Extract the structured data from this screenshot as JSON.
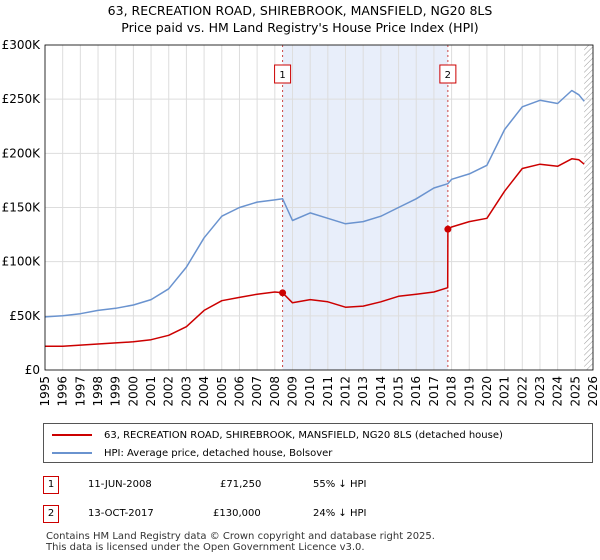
{
  "title_line1": "63, RECREATION ROAD, SHIREBROOK, MANSFIELD, NG20 8LS",
  "title_line2": "Price paid vs. HM Land Registry's House Price Index (HPI)",
  "colors": {
    "price": "#cc0000",
    "hpi": "#6a93cf",
    "shade": "#e8eefa",
    "marker_line": "#cc4444"
  },
  "chart_data": {
    "type": "line",
    "title": "63, RECREATION ROAD, SHIREBROOK, MANSFIELD, NG20 8LS",
    "subtitle": "Price paid vs. HM Land Registry's House Price Index (HPI)",
    "xlim": [
      1995,
      2026
    ],
    "ylim": [
      0,
      300000
    ],
    "y_ticks": [
      0,
      50000,
      100000,
      150000,
      200000,
      250000,
      300000
    ],
    "y_tick_labels": [
      "£0",
      "£50K",
      "£100K",
      "£150K",
      "£200K",
      "£250K",
      "£300K"
    ],
    "x_ticks": [
      1995,
      1996,
      1997,
      1998,
      1999,
      2000,
      2001,
      2002,
      2003,
      2004,
      2005,
      2006,
      2007,
      2008,
      2009,
      2010,
      2011,
      2012,
      2013,
      2014,
      2015,
      2016,
      2017,
      2018,
      2019,
      2020,
      2021,
      2022,
      2023,
      2024,
      2025,
      2026
    ],
    "shaded_range": [
      2008.44,
      2017.79
    ],
    "hatched_from": 2025.5,
    "series": [
      {
        "name": "63, RECREATION ROAD, SHIREBROOK, MANSFIELD, NG20 8LS (detached house)",
        "color": "#cc0000",
        "x": [
          1995,
          1996,
          1997,
          1998,
          1999,
          2000,
          2001,
          2002,
          2003,
          2004,
          2005,
          2006,
          2007,
          2008,
          2008.44,
          2009,
          2010,
          2011,
          2012,
          2013,
          2014,
          2015,
          2016,
          2017,
          2017.78,
          2017.79,
          2018,
          2019,
          2020,
          2021,
          2022,
          2023,
          2024,
          2024.8,
          2025.2,
          2025.5
        ],
        "y": [
          22000,
          22000,
          23000,
          24000,
          25000,
          26000,
          28000,
          32000,
          40000,
          55000,
          64000,
          67000,
          70000,
          72000,
          71250,
          62000,
          65000,
          63000,
          58000,
          59000,
          63000,
          68000,
          70000,
          72000,
          76000,
          130000,
          132000,
          137000,
          140000,
          165000,
          186000,
          190000,
          188000,
          195000,
          194000,
          190000
        ]
      },
      {
        "name": "HPI: Average price, detached house, Bolsover",
        "color": "#6a93cf",
        "x": [
          1995,
          1996,
          1997,
          1998,
          1999,
          2000,
          2001,
          2002,
          2003,
          2004,
          2005,
          2006,
          2007,
          2008,
          2008.44,
          2009,
          2010,
          2011,
          2012,
          2013,
          2014,
          2015,
          2016,
          2017,
          2017.79,
          2018,
          2019,
          2020,
          2021,
          2022,
          2023,
          2024,
          2024.8,
          2025.2,
          2025.5
        ],
        "y": [
          49000,
          50000,
          52000,
          55000,
          57000,
          60000,
          65000,
          75000,
          95000,
          122000,
          142000,
          150000,
          155000,
          157000,
          158000,
          138000,
          145000,
          140000,
          135000,
          137000,
          142000,
          150000,
          158000,
          168000,
          172000,
          176000,
          181000,
          189000,
          222000,
          243000,
          249000,
          246000,
          258000,
          254000,
          248000
        ]
      }
    ],
    "markers": [
      {
        "label": "1",
        "x": 2008.44,
        "y": 71250
      },
      {
        "label": "2",
        "x": 2017.79,
        "y": 130000
      }
    ]
  },
  "legend": {
    "price_label": "63, RECREATION ROAD, SHIREBROOK, MANSFIELD, NG20 8LS (detached house)",
    "hpi_label": "HPI: Average price, detached house, Bolsover"
  },
  "transactions": [
    {
      "label": "1",
      "date": "11-JUN-2008",
      "price": "£71,250",
      "hpi_diff": "55% ↓ HPI"
    },
    {
      "label": "2",
      "date": "13-OCT-2017",
      "price": "£130,000",
      "hpi_diff": "24% ↓ HPI"
    }
  ],
  "footer": {
    "line1": "Contains HM Land Registry data © Crown copyright and database right 2025.",
    "line2": "This data is licensed under the Open Government Licence v3.0."
  }
}
